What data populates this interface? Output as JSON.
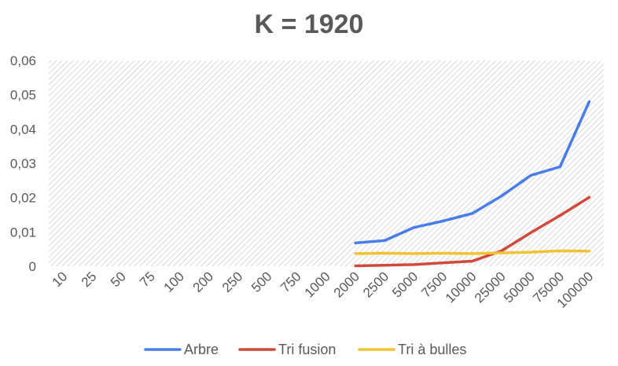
{
  "chart_data": {
    "type": "line",
    "title": "K = 1920",
    "categories": [
      "10",
      "25",
      "50",
      "75",
      "100",
      "200",
      "250",
      "500",
      "750",
      "1000",
      "2000",
      "2500",
      "5000",
      "7500",
      "10000",
      "25000",
      "50000",
      "75000",
      "100000"
    ],
    "y_tick_labels": [
      "0",
      "0,01",
      "0,02",
      "0,03",
      "0,04",
      "0,05",
      "0,06"
    ],
    "ylim": [
      0,
      0.06
    ],
    "grid": "hatched plot area",
    "legend_position": "bottom",
    "series": [
      {
        "name": "Arbre",
        "color": "#4a7de8",
        "values": [
          null,
          null,
          null,
          null,
          null,
          null,
          null,
          null,
          null,
          null,
          0.0068,
          0.0075,
          0.0113,
          0.0132,
          0.0154,
          0.0205,
          0.0265,
          0.029,
          0.048
        ]
      },
      {
        "name": "Tri fusion",
        "color": "#d04a3c",
        "values": [
          null,
          null,
          null,
          null,
          null,
          null,
          null,
          null,
          null,
          null,
          0.0001,
          0.0003,
          0.0005,
          0.001,
          0.0015,
          0.0045,
          0.0098,
          0.0148,
          0.0201
        ]
      },
      {
        "name": "Tri à bulles",
        "color": "#f2c233",
        "values": [
          null,
          null,
          null,
          null,
          null,
          null,
          null,
          null,
          null,
          null,
          0.0037,
          0.0038,
          0.0037,
          0.0038,
          0.0037,
          0.0039,
          0.0041,
          0.0045,
          0.0044
        ]
      }
    ]
  }
}
